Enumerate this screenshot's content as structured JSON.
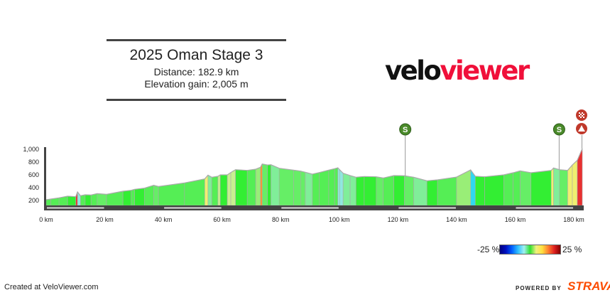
{
  "title": "2025 Oman Stage 3",
  "distance_label": "Distance: 182.9 km",
  "elevation_label": "Elevation gain: 2,005 m",
  "logo": {
    "part1": "velo",
    "part2": "viewer"
  },
  "legend": {
    "min_label": "-25 %",
    "max_label": "25 %"
  },
  "footer": {
    "created": "Created at VeloViewer.com",
    "powered_by": "POWERED BY",
    "brand": "STRAVA"
  },
  "colors": {
    "brand_red": "#f0103a",
    "strava": "#fc4c02",
    "sprint": "#4a8a2a",
    "finish": "#c0392b"
  },
  "chart_data": {
    "type": "area",
    "xlabel": "",
    "ylabel": "",
    "x_unit": "km",
    "xlim": [
      0,
      182.9
    ],
    "ylim": [
      200,
      1000
    ],
    "x_ticks": [
      "0 km",
      "20 km",
      "40 km",
      "60 km",
      "80 km",
      "100 km",
      "120 km",
      "140 km",
      "160 km",
      "180 km"
    ],
    "y_ticks": [
      "200",
      "400",
      "600",
      "800",
      "1,000"
    ],
    "grade_scale": "-25 % to 25 %",
    "profile": [
      [
        0,
        200
      ],
      [
        1.6,
        211
      ],
      [
        4.4,
        230
      ],
      [
        7.3,
        256
      ],
      [
        10.1,
        248
      ],
      [
        10.7,
        322
      ],
      [
        11.7,
        263
      ],
      [
        13.3,
        278
      ],
      [
        15.3,
        274
      ],
      [
        17.4,
        296
      ],
      [
        20.6,
        285
      ],
      [
        26.2,
        333
      ],
      [
        29,
        348
      ],
      [
        30.2,
        363
      ],
      [
        33.5,
        381
      ],
      [
        36.7,
        426
      ],
      [
        38.3,
        407
      ],
      [
        47.2,
        463
      ],
      [
        54.1,
        526
      ],
      [
        55.2,
        585
      ],
      [
        56.5,
        552
      ],
      [
        58.6,
        567
      ],
      [
        59.4,
        589
      ],
      [
        61.8,
        589
      ],
      [
        63,
        626
      ],
      [
        64.6,
        670
      ],
      [
        68.6,
        659
      ],
      [
        71.5,
        678
      ],
      [
        73.1,
        707
      ],
      [
        73.7,
        759
      ],
      [
        75.5,
        744
      ],
      [
        76.7,
        748
      ],
      [
        79.5,
        692
      ],
      [
        84.4,
        663
      ],
      [
        86.8,
        648
      ],
      [
        88.4,
        630
      ],
      [
        90.8,
        600
      ],
      [
        93.2,
        626
      ],
      [
        96.4,
        663
      ],
      [
        98.4,
        685
      ],
      [
        99.5,
        700
      ],
      [
        100.1,
        670
      ],
      [
        101.3,
        615
      ],
      [
        103.7,
        578
      ],
      [
        105.7,
        552
      ],
      [
        108.5,
        563
      ],
      [
        112.6,
        559
      ],
      [
        115,
        540
      ],
      [
        118.6,
        578
      ],
      [
        122.2,
        575
      ],
      [
        125.4,
        552
      ],
      [
        129.9,
        496
      ],
      [
        133.5,
        511
      ],
      [
        140,
        555
      ],
      [
        144.8,
        667
      ],
      [
        146.4,
        567
      ],
      [
        149.6,
        559
      ],
      [
        156.1,
        589
      ],
      [
        159.3,
        622
      ],
      [
        161.7,
        652
      ],
      [
        165.4,
        622
      ],
      [
        172.3,
        659
      ],
      [
        173.1,
        696
      ],
      [
        175.1,
        670
      ],
      [
        177.9,
        659
      ],
      [
        179.5,
        744
      ],
      [
        181.2,
        818
      ],
      [
        182.9,
        1000
      ]
    ],
    "markers": [
      {
        "type": "sprint",
        "label": "S",
        "km": 122.5
      },
      {
        "type": "sprint",
        "label": "S",
        "km": 175
      },
      {
        "type": "finish-summit",
        "label": "",
        "km": 182.9
      }
    ]
  }
}
